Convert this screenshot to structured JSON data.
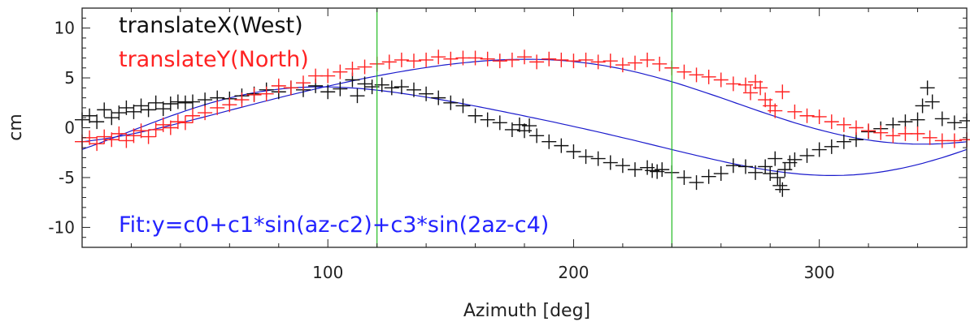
{
  "chart_data": {
    "type": "scatter",
    "xlabel": "Azimuth [deg]",
    "ylabel": "cm",
    "xlim": [
      0,
      360
    ],
    "ylim": [
      -12,
      12
    ],
    "x_ticks": [
      100,
      200,
      300
    ],
    "y_ticks": [
      10,
      5,
      0,
      -5,
      -10
    ],
    "y_tick_labels": [
      "10",
      "5",
      "0",
      "-5",
      "-10"
    ],
    "grid": false,
    "vlines": [
      120,
      240
    ],
    "vline_color": "#22bb22",
    "marker": "plus",
    "series": [
      {
        "name": "translateX(West)",
        "color": "#111111",
        "fit": {
          "c0": -0.2,
          "c1": 4.3,
          "c2": 23,
          "c3": 0.6,
          "c4": 30
        },
        "x": [
          0,
          3,
          6,
          9,
          12,
          15,
          18,
          21,
          24,
          27,
          30,
          33,
          36,
          39,
          42,
          45,
          50,
          55,
          60,
          65,
          70,
          75,
          80,
          85,
          90,
          95,
          100,
          105,
          110,
          112,
          115,
          118,
          122,
          126,
          130,
          135,
          140,
          145,
          150,
          155,
          160,
          165,
          170,
          175,
          178,
          180,
          182,
          185,
          190,
          195,
          200,
          205,
          210,
          215,
          220,
          225,
          230,
          232,
          234,
          236,
          240,
          245,
          250,
          255,
          260,
          265,
          270,
          274,
          278,
          280,
          282,
          283,
          284,
          285,
          286,
          288,
          290,
          295,
          300,
          305,
          310,
          315,
          320,
          325,
          330,
          335,
          340,
          342,
          344,
          346,
          350,
          355,
          360
        ],
        "y": [
          0.8,
          1.2,
          0.6,
          1.8,
          1.0,
          1.5,
          2.0,
          1.6,
          2.2,
          1.8,
          2.5,
          1.9,
          2.4,
          2.6,
          2.5,
          2.6,
          2.8,
          3.0,
          2.9,
          3.2,
          3.4,
          3.8,
          3.6,
          4.0,
          3.8,
          4.2,
          3.6,
          3.9,
          4.8,
          3.2,
          4.4,
          4.1,
          4.3,
          4.0,
          4.1,
          3.8,
          3.4,
          3.0,
          2.5,
          2.2,
          1.2,
          0.8,
          0.5,
          -0.2,
          0.3,
          -0.3,
          0.2,
          -0.8,
          -1.4,
          -1.8,
          -2.4,
          -2.9,
          -3.1,
          -3.5,
          -3.8,
          -4.2,
          -4.0,
          -4.3,
          -4.4,
          -4.2,
          -4.5,
          -5.0,
          -5.5,
          -4.9,
          -4.6,
          -3.8,
          -3.9,
          -4.5,
          -3.9,
          -4.6,
          -3.1,
          -5.0,
          -5.8,
          -6.2,
          -4.2,
          -3.5,
          -3.2,
          -2.8,
          -2.2,
          -1.9,
          -1.4,
          -1.2,
          -0.4,
          -0.1,
          0.3,
          0.6,
          0.8,
          2.2,
          4.0,
          2.6,
          0.9,
          0.5,
          0.7
        ]
      },
      {
        "name": "translateY(North)",
        "color": "#ff2222",
        "fit": {
          "c0": 2.8,
          "c1": 4.2,
          "c2": 80,
          "c3": 0.4,
          "c4": 10
        },
        "x": [
          0,
          3,
          6,
          9,
          12,
          15,
          18,
          21,
          24,
          27,
          30,
          33,
          36,
          39,
          42,
          45,
          50,
          55,
          60,
          65,
          70,
          75,
          80,
          85,
          90,
          95,
          100,
          105,
          110,
          115,
          120,
          125,
          130,
          135,
          140,
          145,
          150,
          155,
          160,
          165,
          170,
          175,
          180,
          185,
          190,
          195,
          200,
          205,
          210,
          215,
          220,
          225,
          230,
          235,
          240,
          245,
          250,
          255,
          260,
          265,
          270,
          272,
          274,
          276,
          278,
          280,
          282,
          285,
          290,
          295,
          300,
          305,
          310,
          315,
          320,
          325,
          330,
          335,
          340,
          345,
          350,
          355,
          360
        ],
        "y": [
          -1.4,
          -1.0,
          -1.6,
          -0.9,
          -1.2,
          -0.6,
          -1.3,
          -0.8,
          -0.3,
          -0.9,
          -0.2,
          0.3,
          0.0,
          0.6,
          0.5,
          1.2,
          1.5,
          2.0,
          2.3,
          2.8,
          3.3,
          3.4,
          4.2,
          4.0,
          4.5,
          5.2,
          5.2,
          5.6,
          5.9,
          6.1,
          6.4,
          6.6,
          6.8,
          6.7,
          6.8,
          7.1,
          6.9,
          7.0,
          7.0,
          6.9,
          6.7,
          6.8,
          7.1,
          6.6,
          6.9,
          6.8,
          6.7,
          6.8,
          6.6,
          6.7,
          6.3,
          6.5,
          6.8,
          6.4,
          6.0,
          5.6,
          5.3,
          5.1,
          4.8,
          4.4,
          4.3,
          3.5,
          4.6,
          4.0,
          2.8,
          2.2,
          1.7,
          3.6,
          1.6,
          1.2,
          1.1,
          0.6,
          0.3,
          0.0,
          -0.3,
          -0.5,
          -0.8,
          -0.6,
          -0.6,
          -1.0,
          -1.3,
          -1.3,
          -1.2
        ]
      }
    ],
    "annotation": {
      "text": "Fit:y=c0+c1*sin(az-c2)+c3*sin(2az-c4)",
      "color": "#2222ff"
    },
    "fit_line_color": "#1a1acc"
  }
}
